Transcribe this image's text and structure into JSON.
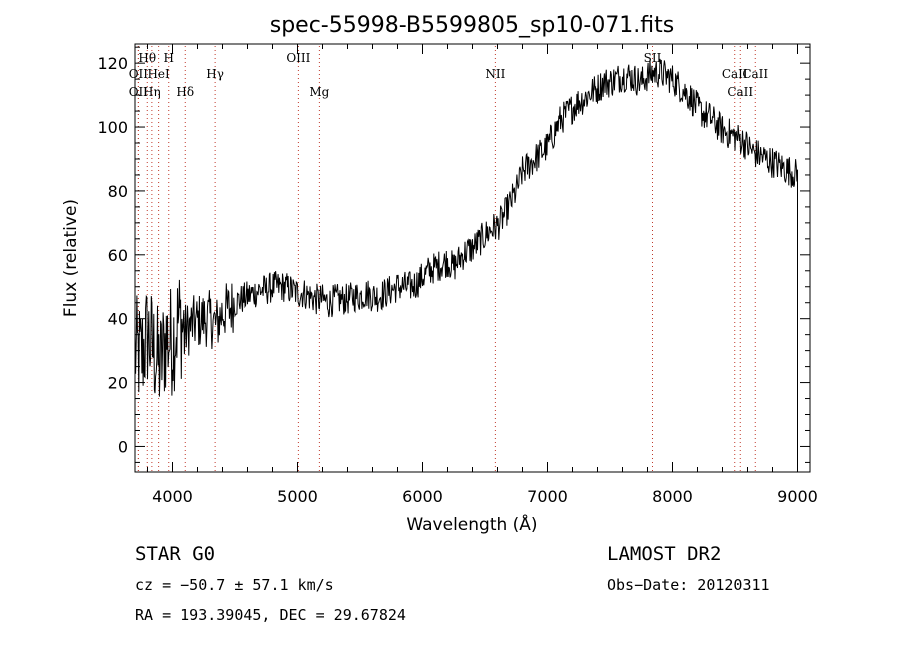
{
  "chart_data": {
    "type": "line",
    "title": "spec-55998-B5599805_sp10-071.fits",
    "xlabel": "Wavelength (Å)",
    "ylabel": "Flux (relative)",
    "xlim": [
      3700,
      9100
    ],
    "ylim": [
      -8,
      126
    ],
    "x_ticks": [
      4000,
      5000,
      6000,
      7000,
      8000,
      9000
    ],
    "y_ticks": [
      0,
      20,
      40,
      60,
      80,
      100,
      120
    ],
    "grid": false,
    "line_color": "#000000",
    "marker_color": "#c0392b",
    "series": [
      {
        "x": [
          3700,
          3750,
          3800,
          3850,
          3900,
          3950,
          4000,
          4050,
          4100,
          4150,
          4200,
          4250,
          4300,
          4350,
          4400,
          4450,
          4500,
          4550,
          4600,
          4650,
          4700,
          4750,
          4800,
          4850,
          4900,
          4950,
          5000,
          5050,
          5100,
          5150,
          5200,
          5250,
          5300,
          5350,
          5400,
          5450,
          5500,
          5550,
          5600,
          5650,
          5700,
          5750,
          5800,
          5850,
          5900,
          5950,
          6000,
          6050,
          6100,
          6150,
          6200,
          6250,
          6300,
          6350,
          6400,
          6450,
          6500,
          6550,
          6600,
          6650,
          6700,
          6750,
          6800,
          6850,
          6900,
          6950,
          7000,
          7050,
          7100,
          7150,
          7200,
          7250,
          7300,
          7350,
          7400,
          7450,
          7500,
          7550,
          7600,
          7650,
          7700,
          7750,
          7800,
          7850,
          7900,
          7950,
          8000,
          8050,
          8100,
          8150,
          8200,
          8250,
          8300,
          8350,
          8400,
          8450,
          8500,
          8550,
          8600,
          8650,
          8700,
          8750,
          8800,
          8850,
          8900,
          8950,
          9000
        ],
        "y": [
          30,
          28,
          35,
          30,
          25,
          34,
          33,
          40,
          36,
          38,
          39,
          40,
          40,
          38,
          42,
          43,
          45,
          46,
          47,
          48,
          49,
          49,
          50,
          50,
          50,
          49,
          48,
          48,
          47,
          46,
          46,
          45,
          46,
          46,
          46,
          47,
          47,
          48,
          47,
          47,
          48,
          49,
          50,
          50,
          50,
          51,
          53,
          55,
          56,
          57,
          58,
          56,
          59,
          61,
          62,
          64,
          66,
          68,
          69,
          72,
          76,
          80,
          86,
          88,
          90,
          92,
          94,
          98,
          102,
          104,
          106,
          108,
          109,
          111,
          112,
          114,
          114,
          115,
          116,
          116,
          115,
          114,
          116,
          117,
          117,
          116,
          115,
          113,
          111,
          109,
          106,
          104,
          103,
          101,
          99,
          98,
          97,
          96,
          94,
          92,
          91,
          90,
          89,
          88,
          87,
          86,
          85
        ]
      }
    ],
    "line_markers": [
      {
        "label": "Hθ",
        "x": 3798
      },
      {
        "label": "OII",
        "x": 3727
      },
      {
        "label": "HeI",
        "x": 3889
      },
      {
        "label": "OII",
        "x": 3727
      },
      {
        "label": "Hη",
        "x": 3835
      },
      {
        "label": "H",
        "x": 3970
      },
      {
        "label": "Hδ",
        "x": 4102
      },
      {
        "label": "Hγ",
        "x": 4341
      },
      {
        "label": "OIII",
        "x": 5007
      },
      {
        "label": "Mg",
        "x": 5175
      },
      {
        "label": "NII",
        "x": 6583
      },
      {
        "label": "SII",
        "x": 7840
      },
      {
        "label": "CaII",
        "x": 8542
      },
      {
        "label": "CaII",
        "x": 8498
      },
      {
        "label": "CaII",
        "x": 8662
      }
    ]
  },
  "info": {
    "class_text": "STAR    G0",
    "cz_text": "cz = −50.7 ± 57.1 km/s",
    "coord_text": "RA = 193.39045, DEC =  29.67824",
    "survey_text": "LAMOST DR2",
    "obsdate_text": "Obs−Date: 20120311"
  }
}
